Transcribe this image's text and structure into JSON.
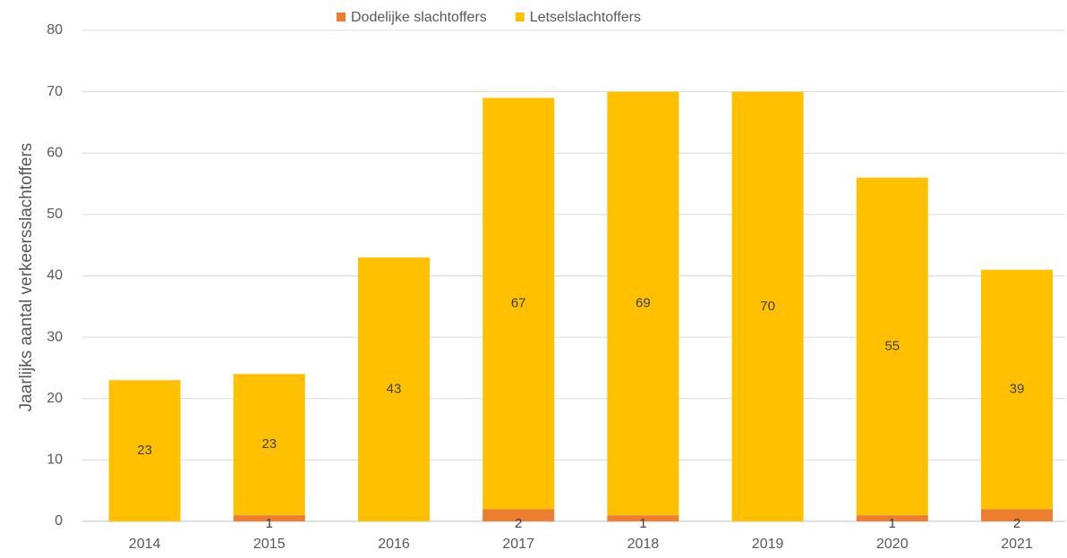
{
  "chart_data": {
    "type": "bar",
    "stacked": true,
    "y_label": "Jaarlijks aantal verkeersslachtoffers",
    "categories": [
      "2014",
      "2015",
      "2016",
      "2017",
      "2018",
      "2019",
      "2020",
      "2021"
    ],
    "series": [
      {
        "name": "Dodelijke slachtoffers",
        "color": "#ed7d31",
        "values": [
          0,
          1,
          0,
          2,
          1,
          0,
          1,
          2
        ]
      },
      {
        "name": "Letselslachtoffers",
        "color": "#ffc000",
        "values": [
          23,
          23,
          43,
          67,
          69,
          70,
          55,
          39
        ]
      }
    ],
    "ylim": [
      0,
      80
    ],
    "yticks": [
      0,
      10,
      20,
      30,
      40,
      50,
      60,
      70,
      80
    ],
    "grid": true,
    "legend": "top"
  }
}
